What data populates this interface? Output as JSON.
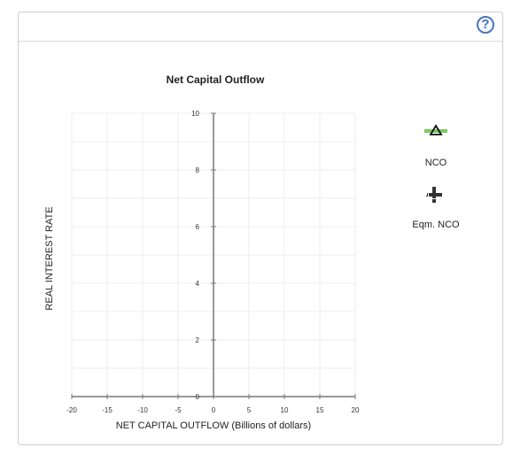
{
  "help_label": "?",
  "chart_data": {
    "type": "line",
    "title": "Net Capital Outflow",
    "xlabel": "NET CAPITAL OUTFLOW (Billions of dollars)",
    "ylabel": "REAL INTEREST RATE",
    "xlim": [
      -20,
      20
    ],
    "ylim": [
      0,
      10
    ],
    "x_ticks": [
      -20,
      -15,
      -10,
      -5,
      0,
      5,
      10,
      15,
      20
    ],
    "y_ticks": [
      0,
      2,
      4,
      6,
      8,
      10
    ],
    "grid": true,
    "series": []
  },
  "legend": {
    "items": [
      {
        "label": "NCO",
        "icon": "triangle-line-icon",
        "color": "#7dc95e"
      },
      {
        "label": "Eqm. NCO",
        "icon": "plus-crosshair-icon",
        "color": "#333333"
      }
    ]
  }
}
